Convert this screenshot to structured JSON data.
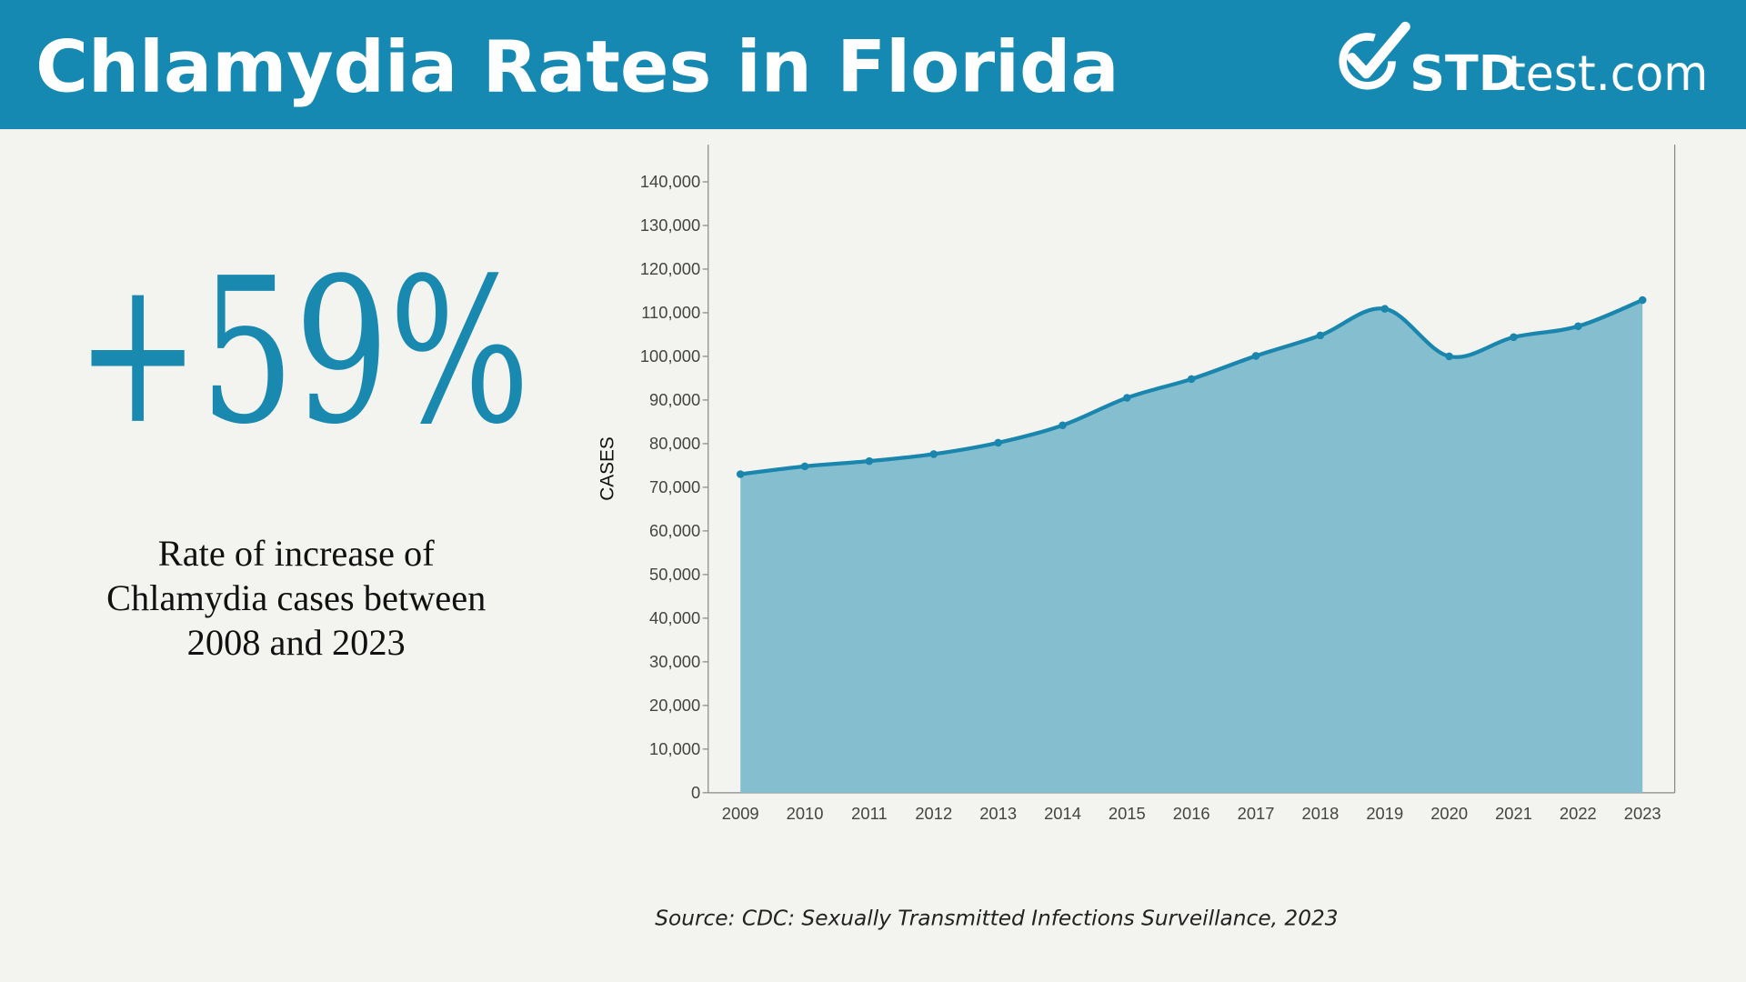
{
  "header": {
    "title": "Chlamydia Rates in Florida",
    "logo": {
      "brand": "STD",
      "domain": "test.com"
    }
  },
  "stat": {
    "value": "+59%",
    "description": [
      "Rate of increase of",
      "Chlamydia cases between",
      "2008 and 2023"
    ]
  },
  "chart_data": {
    "type": "area",
    "y_label": "CASES",
    "categories": [
      "2009",
      "2010",
      "2011",
      "2012",
      "2013",
      "2014",
      "2015",
      "2016",
      "2017",
      "2018",
      "2019",
      "2020",
      "2021",
      "2022",
      "2023"
    ],
    "values": [
      73000,
      74800,
      76000,
      77600,
      80200,
      84200,
      90500,
      94800,
      100100,
      104800,
      110900,
      100000,
      104400,
      106900,
      112900
    ],
    "color": "#1a86ad",
    "fill": "#85bfcf",
    "ylim": [
      0,
      148500
    ],
    "yticks": [
      0,
      {
        "value": 10000,
        "label": "10,000"
      },
      {
        "value": 20000,
        "label": "20,000"
      },
      {
        "value": 30000,
        "label": "30,000"
      },
      {
        "value": 40000,
        "label": "40,000"
      },
      {
        "value": 50000,
        "label": "50,000"
      },
      {
        "value": 60000,
        "label": "60,000"
      },
      {
        "value": 70000,
        "label": "70,000"
      },
      {
        "value": 80000,
        "label": "80,000"
      },
      {
        "value": 90000,
        "label": "90,000"
      },
      {
        "value": 100000,
        "label": "100,000"
      },
      {
        "value": 110000,
        "label": "110,000"
      },
      {
        "value": 120000,
        "label": "120,000"
      },
      {
        "value": 130000,
        "label": "130,000"
      },
      {
        "value": 140000,
        "label": "140,000"
      }
    ]
  },
  "source": "Source: CDC: Sexually Transmitted Infections Surveillance, 2023"
}
